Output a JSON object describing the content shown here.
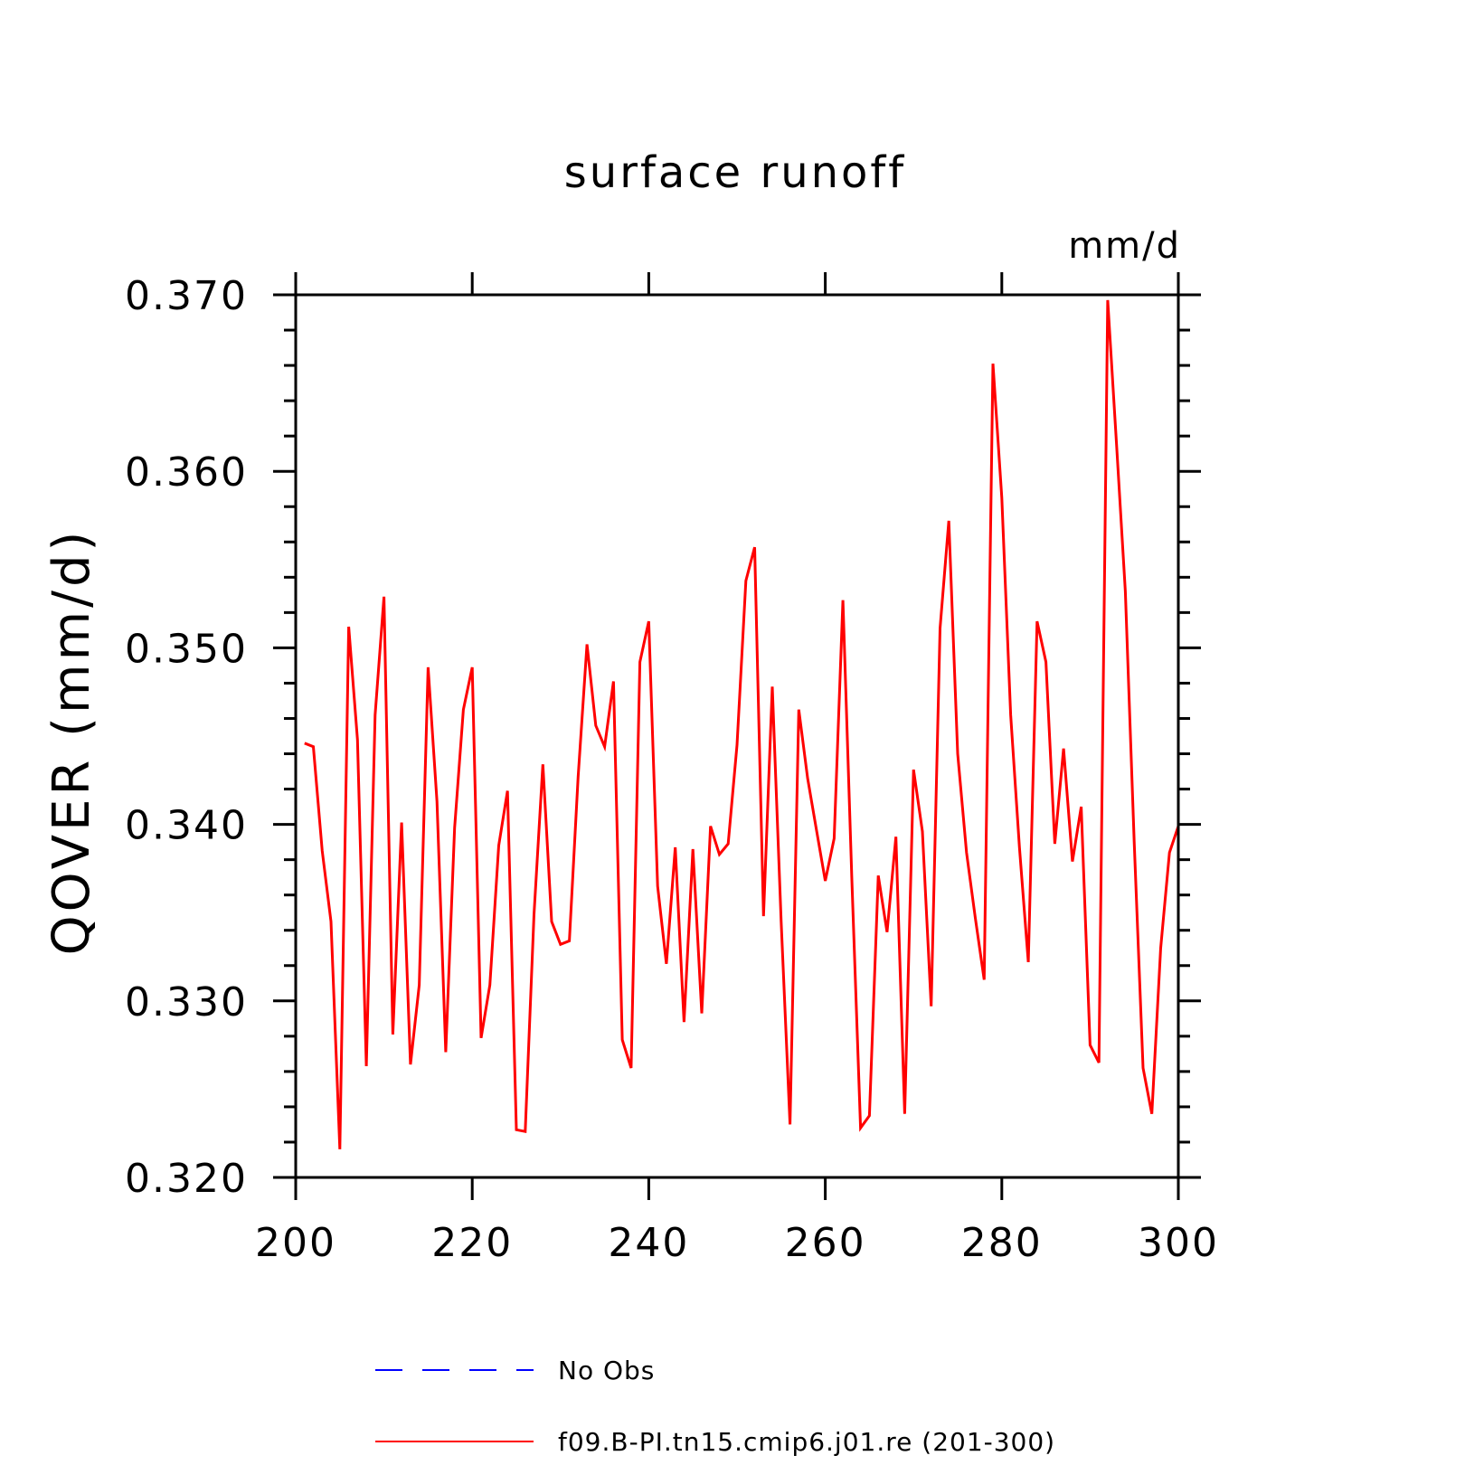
{
  "chart_data": {
    "type": "line",
    "title": "surface runoff",
    "units": "mm/d",
    "ylabel": "QOVER  (mm/d)",
    "xlabel": "",
    "xlim": [
      200,
      300
    ],
    "ylim": [
      0.32,
      0.37
    ],
    "x_ticks": [
      "200",
      "220",
      "240",
      "260",
      "280",
      "300"
    ],
    "y_ticks": [
      "0.320",
      "0.330",
      "0.340",
      "0.350",
      "0.360",
      "0.370"
    ],
    "grid": false,
    "legend_position": "bottom",
    "series": [
      {
        "name": "No Obs",
        "color": "#0000ff",
        "style": "dashed",
        "x": [],
        "values": []
      },
      {
        "name": "f09.B-PI.tn15.cmip6.j01.re (201-300)",
        "color": "#ff0000",
        "style": "solid",
        "x": [
          201,
          202,
          203,
          204,
          205,
          206,
          207,
          208,
          209,
          210,
          211,
          212,
          213,
          214,
          215,
          216,
          217,
          218,
          219,
          220,
          221,
          222,
          223,
          224,
          225,
          226,
          227,
          228,
          229,
          230,
          231,
          232,
          233,
          234,
          235,
          236,
          237,
          238,
          239,
          240,
          241,
          242,
          243,
          244,
          245,
          246,
          247,
          248,
          249,
          250,
          251,
          252,
          253,
          254,
          255,
          256,
          257,
          258,
          259,
          260,
          261,
          262,
          263,
          264,
          265,
          266,
          267,
          268,
          269,
          270,
          271,
          272,
          273,
          274,
          275,
          276,
          277,
          278,
          279,
          280,
          281,
          282,
          283,
          284,
          285,
          286,
          287,
          288,
          289,
          290,
          291,
          292,
          293,
          294,
          295,
          296,
          297,
          298,
          299,
          300
        ],
        "values": [
          0.3446,
          0.3444,
          0.3385,
          0.3345,
          0.3216,
          0.3512,
          0.3448,
          0.3263,
          0.3462,
          0.3529,
          0.3281,
          0.3401,
          0.3264,
          0.3309,
          0.3489,
          0.3413,
          0.3271,
          0.3398,
          0.3465,
          0.3489,
          0.3279,
          0.3309,
          0.3388,
          0.3419,
          0.3227,
          0.3226,
          0.3349,
          0.3434,
          0.3345,
          0.3332,
          0.3334,
          0.3427,
          0.3502,
          0.3456,
          0.3444,
          0.3481,
          0.3278,
          0.3262,
          0.3492,
          0.3515,
          0.3365,
          0.3321,
          0.3387,
          0.3288,
          0.3386,
          0.3293,
          0.3399,
          0.3383,
          0.3389,
          0.3445,
          0.3538,
          0.3557,
          0.3348,
          0.3478,
          0.3345,
          0.323,
          0.3465,
          0.3426,
          0.3397,
          0.3368,
          0.3392,
          0.3527,
          0.337,
          0.3228,
          0.3235,
          0.3371,
          0.3339,
          0.3393,
          0.3236,
          0.3431,
          0.3396,
          0.3297,
          0.3511,
          0.3572,
          0.344,
          0.3384,
          0.3347,
          0.3312,
          0.3661,
          0.3585,
          0.3462,
          0.3387,
          0.3322,
          0.3515,
          0.3492,
          0.3389,
          0.3443,
          0.3379,
          0.341,
          0.3275,
          0.3265,
          0.3697,
          0.3615,
          0.3532,
          0.339,
          0.3262,
          0.3236,
          0.333,
          0.3384,
          0.3399
        ]
      }
    ]
  }
}
